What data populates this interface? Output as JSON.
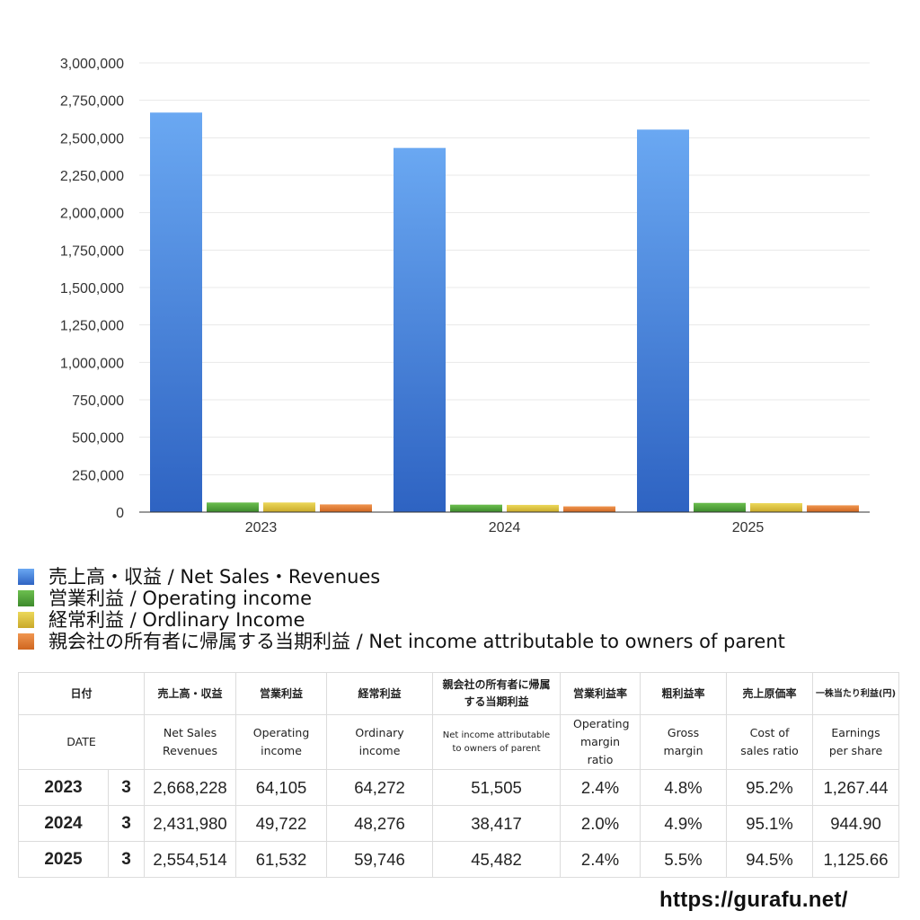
{
  "chart_data": {
    "type": "bar",
    "categories": [
      "2023",
      "2024",
      "2025"
    ],
    "series": [
      {
        "name": "売上高・収益 / Net Sales・Revenues",
        "values": [
          2668228,
          2431980,
          2554514
        ]
      },
      {
        "name": "営業利益 / Operating income",
        "values": [
          64105,
          49722,
          61532
        ]
      },
      {
        "name": "経常利益 / Ordlinary Income",
        "values": [
          64272,
          48276,
          59746
        ]
      },
      {
        "name": "親会社の所有者に帰属する当期利益 / Net income attributable to owners of parent",
        "values": [
          51505,
          38417,
          45482
        ]
      }
    ],
    "ylim": [
      0,
      3000000
    ],
    "yticks": [
      "0",
      "250,000",
      "500,000",
      "750,000",
      "1,000,000",
      "1,250,000",
      "1,500,000",
      "1,750,000",
      "2,000,000",
      "2,250,000",
      "2,500,000",
      "2,750,000",
      "3,000,000"
    ],
    "grid": true,
    "legend_position": "bottom",
    "colors": [
      "#3d7fe0",
      "#4f9c3c",
      "#d8c23a",
      "#e07a2e"
    ]
  },
  "table": {
    "header_jp": [
      "日付",
      "売上高・収益",
      "営業利益",
      "経常利益",
      "親会社の所有者に帰属する当期利益",
      "営業利益率",
      "粗利益率",
      "売上原価率",
      "一株当たり利益(円)"
    ],
    "header_en": [
      "DATE",
      "Net Sales Revenues",
      "Operating income",
      "Ordinary income",
      "Net income attributable to owners of parent",
      "Operating margin ratio",
      "Gross margin",
      "Cost of sales ratio",
      "Earnings per share"
    ],
    "rows": [
      {
        "year": "2023",
        "month": "3",
        "sales": "2,668,228",
        "op": "64,105",
        "ord": "64,272",
        "net": "51,505",
        "opm": "2.4%",
        "gm": "4.8%",
        "cos": "95.2%",
        "eps": "1,267.44"
      },
      {
        "year": "2024",
        "month": "3",
        "sales": "2,431,980",
        "op": "49,722",
        "ord": "48,276",
        "net": "38,417",
        "opm": "2.0%",
        "gm": "4.9%",
        "cos": "95.1%",
        "eps": "944.90"
      },
      {
        "year": "2025",
        "month": "3",
        "sales": "2,554,514",
        "op": "61,532",
        "ord": "59,746",
        "net": "45,482",
        "opm": "2.4%",
        "gm": "5.5%",
        "cos": "94.5%",
        "eps": "1,125.66"
      }
    ]
  },
  "footer": {
    "url": "https://gurafu.net/"
  }
}
